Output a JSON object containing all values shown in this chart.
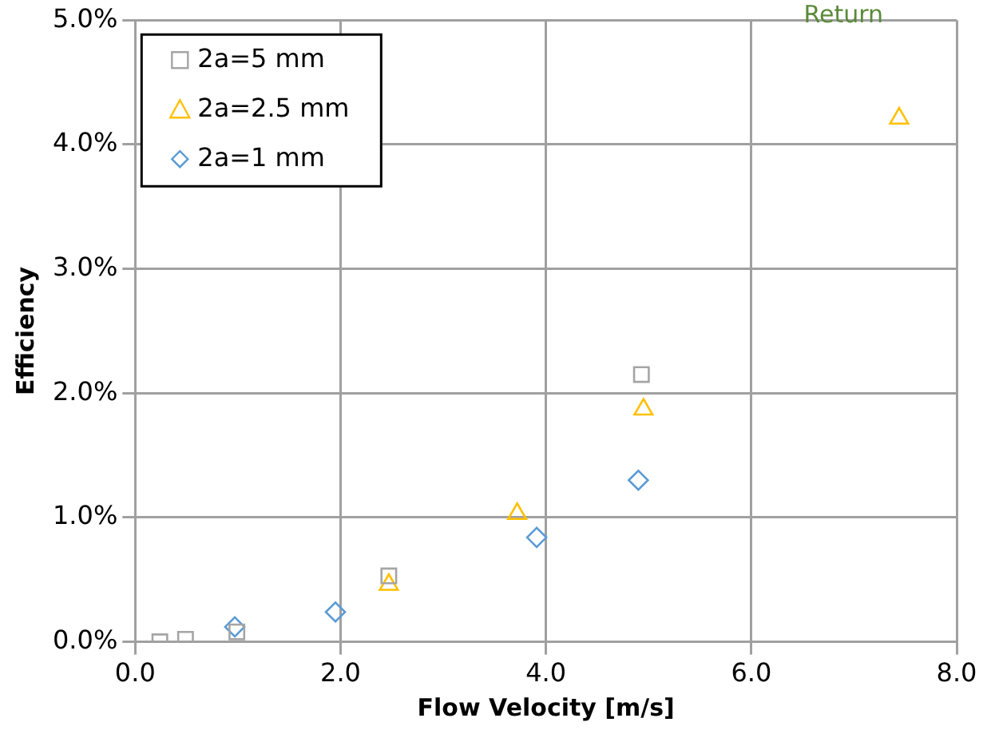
{
  "chart_data": {
    "type": "scatter",
    "xlabel": "Flow Velocity [m/s]",
    "ylabel": "Efficiency",
    "annotations": [
      "Return"
    ],
    "xlim": [
      0,
      8
    ],
    "xticks": [
      {
        "value": 0,
        "label": "0.0"
      },
      {
        "value": 2,
        "label": "2.0"
      },
      {
        "value": 4,
        "label": "4.0"
      },
      {
        "value": 6,
        "label": "6.0"
      },
      {
        "value": 8,
        "label": "8.0"
      }
    ],
    "ylim": [
      0,
      5
    ],
    "yticks": [
      {
        "value": 0,
        "label": "0.0%"
      },
      {
        "value": 1,
        "label": "1.0%"
      },
      {
        "value": 2,
        "label": "2.0%"
      },
      {
        "value": 3,
        "label": "3.0%"
      },
      {
        "value": 4,
        "label": "4.0%"
      },
      {
        "value": 5,
        "label": "5.0%"
      }
    ],
    "grid": true,
    "legend": "top left",
    "series": [
      {
        "name": "2a=5 mm",
        "color": "#a5a5a5",
        "marker": "square",
        "x": [
          0.24,
          0.49,
          0.99,
          2.47,
          4.93
        ],
        "values": [
          0,
          0.02,
          0.08,
          0.53,
          2.15
        ]
      },
      {
        "name": "2a=2.5 mm",
        "color": "#ffc000",
        "marker": "triangle",
        "x": [
          2.47,
          3.72,
          4.95,
          7.44
        ],
        "values": [
          0.46,
          1.03,
          1.87,
          4.21
        ]
      },
      {
        "name": "2a=1 mm",
        "color": "#5b9bd5",
        "marker": "diamond",
        "x": [
          0.97,
          1.95,
          3.91,
          4.9
        ],
        "values": [
          0.12,
          0.24,
          0.84,
          1.3
        ]
      }
    ]
  }
}
